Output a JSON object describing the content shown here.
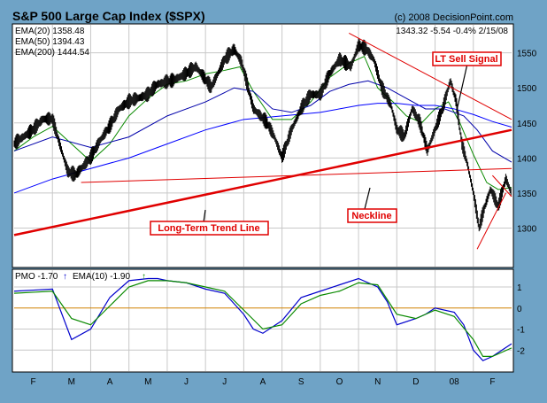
{
  "header": {
    "title": "S&P 500 Large Cap Index ($SPX)",
    "credit": "(c) 2008 DecisionPoint.com",
    "quote": "1343.32  -5.54  -0.4%  2/15/08"
  },
  "annotations": {
    "lt_sell_signal": "LT Sell Signal",
    "neckline": "Neckline",
    "trend_line": "Long-Term Trend Line"
  },
  "legend": {
    "ema20": "EMA(20) 1358.48",
    "ema50": "EMA(50) 1394.43",
    "ema200": "EMA(200) 1444.54",
    "pmo": "PMO  -1.70",
    "pmo_arrow": "↑",
    "ema10": "EMA(10)  -1.90",
    "ema10_arrow": "↑"
  },
  "colors": {
    "background": "#6fa3c6",
    "panel": "#ffffff",
    "grid": "#c8c8c8",
    "price": "#000000",
    "ema20": "#0a8a00",
    "ema50": "#0000aa",
    "ema200": "#0000ff",
    "trend_line": "#e00000",
    "resistance": "#e00000",
    "label_border": "#e00000",
    "label_text": "#e00000",
    "zero_line": "#d08000",
    "pmo": "#0000cc",
    "pmo_ema": "#0a8a00"
  },
  "chart_data": [
    {
      "type": "line",
      "title": "S&P 500 Large Cap Index ($SPX)",
      "ylim": [
        1245,
        1590
      ],
      "yticks": [
        1300,
        1350,
        1400,
        1450,
        1500,
        1550
      ],
      "x_labels": [
        "F",
        "M",
        "A",
        "M",
        "J",
        "J",
        "A",
        "S",
        "O",
        "N",
        "D",
        "08",
        "F"
      ],
      "x_range": [
        0,
        26
      ],
      "x_label_pos": [
        1,
        3,
        5,
        7,
        9,
        11,
        13,
        15,
        17,
        19,
        21,
        23,
        25
      ],
      "x_month_start": [
        2,
        4,
        6,
        8,
        10,
        12,
        14,
        16,
        18,
        20,
        22,
        24
      ],
      "series": [
        {
          "name": "S&P 500",
          "x": [
            0,
            1,
            1.5,
            2,
            2.8,
            3.2,
            4,
            4.5,
            5,
            5.5,
            6,
            7,
            7.5,
            8.3,
            9,
            9.5,
            10.3,
            11,
            11.5,
            11.9,
            12.5,
            13.2,
            13.6,
            14,
            14.5,
            15,
            15.5,
            16,
            16.5,
            17,
            17.6,
            18,
            18.4,
            18.8,
            19.2,
            19.7,
            20,
            20.4,
            20.8,
            21.2,
            21.6,
            22,
            22.4,
            22.8,
            23.1,
            23.4,
            23.7,
            24,
            24.3,
            24.6,
            24.9,
            25.3,
            25.7,
            26
          ],
          "y": [
            1420,
            1440,
            1455,
            1455,
            1380,
            1375,
            1400,
            1425,
            1445,
            1470,
            1480,
            1490,
            1505,
            1510,
            1520,
            1530,
            1500,
            1540,
            1555,
            1535,
            1470,
            1450,
            1430,
            1400,
            1440,
            1470,
            1490,
            1490,
            1520,
            1540,
            1530,
            1560,
            1555,
            1540,
            1500,
            1475,
            1440,
            1430,
            1470,
            1450,
            1410,
            1440,
            1470,
            1510,
            1480,
            1420,
            1390,
            1350,
            1300,
            1330,
            1355,
            1330,
            1370,
            1348
          ]
        },
        {
          "name": "EMA(20)",
          "x": [
            0,
            1,
            2,
            3,
            4,
            5,
            6,
            7,
            8,
            9,
            10,
            11,
            11.8,
            12.5,
            13.5,
            14.5,
            15.5,
            16.5,
            17.5,
            18.3,
            19,
            19.8,
            20.5,
            21.3,
            22,
            22.7,
            23.3,
            24,
            24.7,
            25.3,
            26
          ],
          "y": [
            1410,
            1430,
            1445,
            1420,
            1395,
            1420,
            1460,
            1485,
            1505,
            1510,
            1520,
            1525,
            1530,
            1495,
            1455,
            1455,
            1480,
            1515,
            1535,
            1545,
            1500,
            1480,
            1460,
            1450,
            1470,
            1480,
            1450,
            1405,
            1365,
            1355,
            1358
          ]
        },
        {
          "name": "EMA(50)",
          "x": [
            0,
            2,
            4,
            6,
            8,
            10,
            11.5,
            12.5,
            13.5,
            14.5,
            15.5,
            16.5,
            17.5,
            18.5,
            19.5,
            20.5,
            21.5,
            22.5,
            23.5,
            24.2,
            25,
            26
          ],
          "y": [
            1410,
            1430,
            1415,
            1430,
            1460,
            1480,
            1500,
            1495,
            1470,
            1465,
            1475,
            1495,
            1505,
            1510,
            1500,
            1485,
            1470,
            1470,
            1460,
            1440,
            1410,
            1394
          ]
        },
        {
          "name": "EMA(200)",
          "x": [
            0,
            2,
            4,
            6,
            8,
            10,
            12,
            14,
            16,
            18,
            19,
            20,
            21,
            22,
            23,
            24,
            25,
            26
          ],
          "y": [
            1350,
            1370,
            1385,
            1400,
            1420,
            1440,
            1455,
            1460,
            1465,
            1475,
            1478,
            1478,
            1475,
            1475,
            1470,
            1462,
            1452,
            1444
          ]
        }
      ],
      "lines": [
        {
          "name": "Long-Term Trend Line",
          "x": [
            0,
            26
          ],
          "y": [
            1290,
            1440
          ]
        },
        {
          "name": "Neckline",
          "x": [
            3.5,
            26
          ],
          "y": [
            1365,
            1385
          ]
        },
        {
          "name": "LT Sell resistance",
          "x": [
            17.5,
            26
          ],
          "y": [
            1578,
            1455
          ]
        },
        {
          "name": "support",
          "x": [
            24.2,
            25.7
          ],
          "y": [
            1270,
            1350
          ]
        },
        {
          "name": "resistance",
          "x": [
            25,
            26
          ],
          "y": [
            1375,
            1345
          ]
        }
      ]
    },
    {
      "type": "line",
      "title": "PMO",
      "ylim": [
        -3,
        1.8
      ],
      "yticks": [
        -2,
        -1,
        0,
        1
      ],
      "x_range": [
        0,
        26
      ],
      "series": [
        {
          "name": "PMO",
          "x": [
            0,
            1,
            2,
            3,
            4,
            5,
            6,
            7,
            7.5,
            8,
            9,
            10,
            11,
            12,
            12.5,
            13,
            14,
            15,
            16,
            17,
            18,
            19,
            19.5,
            20,
            21,
            21.5,
            22,
            23,
            23.5,
            24,
            24.5,
            25,
            25.5,
            26
          ],
          "y": [
            0.8,
            0.85,
            0.9,
            -1.5,
            -1.0,
            0.5,
            1.3,
            1.4,
            1.4,
            1.3,
            1.2,
            0.9,
            0.7,
            -0.3,
            -1.0,
            -1.2,
            -0.6,
            0.5,
            0.8,
            1.1,
            1.4,
            1.0,
            0.3,
            -0.8,
            -0.5,
            -0.3,
            0,
            -0.2,
            -0.8,
            -2.0,
            -2.5,
            -2.3,
            -2.0,
            -1.7
          ]
        },
        {
          "name": "EMA(10)",
          "x": [
            0,
            1,
            2,
            3,
            4,
            5,
            6,
            7,
            8,
            9,
            10,
            11,
            12,
            13,
            14,
            15,
            16,
            17,
            18,
            19,
            20,
            21,
            22,
            23,
            24,
            24.5,
            25,
            25.5,
            26
          ],
          "y": [
            0.7,
            0.75,
            0.8,
            -0.5,
            -0.8,
            0.1,
            1.0,
            1.3,
            1.3,
            1.2,
            1.0,
            0.8,
            -0.1,
            -1.0,
            -0.8,
            0.2,
            0.6,
            0.8,
            1.2,
            1.1,
            -0.3,
            -0.5,
            -0.1,
            -0.4,
            -1.5,
            -2.3,
            -2.3,
            -2.1,
            -1.9
          ]
        }
      ]
    }
  ]
}
